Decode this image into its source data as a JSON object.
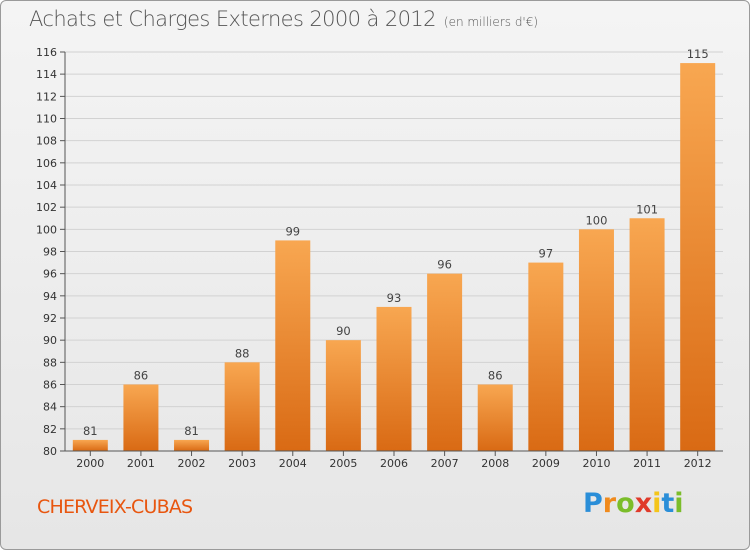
{
  "title": "Achats et Charges Externes 2000 à 2012",
  "subtitle": "(en milliers d'€)",
  "place": "CHERVEIX-CUBAS",
  "brand": {
    "letters": [
      "P",
      "r",
      "o",
      "x",
      "i",
      "t",
      "i"
    ],
    "colors": [
      "#2a8ed8",
      "#f08a1c",
      "#7bbd2a",
      "#e03a2a",
      "#f4c51a",
      "#2a8ed8",
      "#7bbd2a"
    ]
  },
  "colors": {
    "bar_top": "#f8a751",
    "bar_bottom": "#d96a14",
    "place": "#e8560f",
    "title": "#555555"
  },
  "chart_data": {
    "type": "bar",
    "title": "Achats et Charges Externes 2000 à 2012",
    "subtitle": "(en milliers d'€)",
    "categories": [
      "2000",
      "2001",
      "2002",
      "2003",
      "2004",
      "2005",
      "2006",
      "2007",
      "2008",
      "2009",
      "2010",
      "2011",
      "2012"
    ],
    "values": [
      81,
      86,
      81,
      88,
      99,
      90,
      93,
      96,
      86,
      97,
      100,
      101,
      115
    ],
    "ylim": [
      80,
      116
    ],
    "yticks": [
      80,
      82,
      84,
      86,
      88,
      90,
      92,
      94,
      96,
      98,
      100,
      102,
      104,
      106,
      108,
      110,
      112,
      114,
      116
    ],
    "grid": true
  }
}
